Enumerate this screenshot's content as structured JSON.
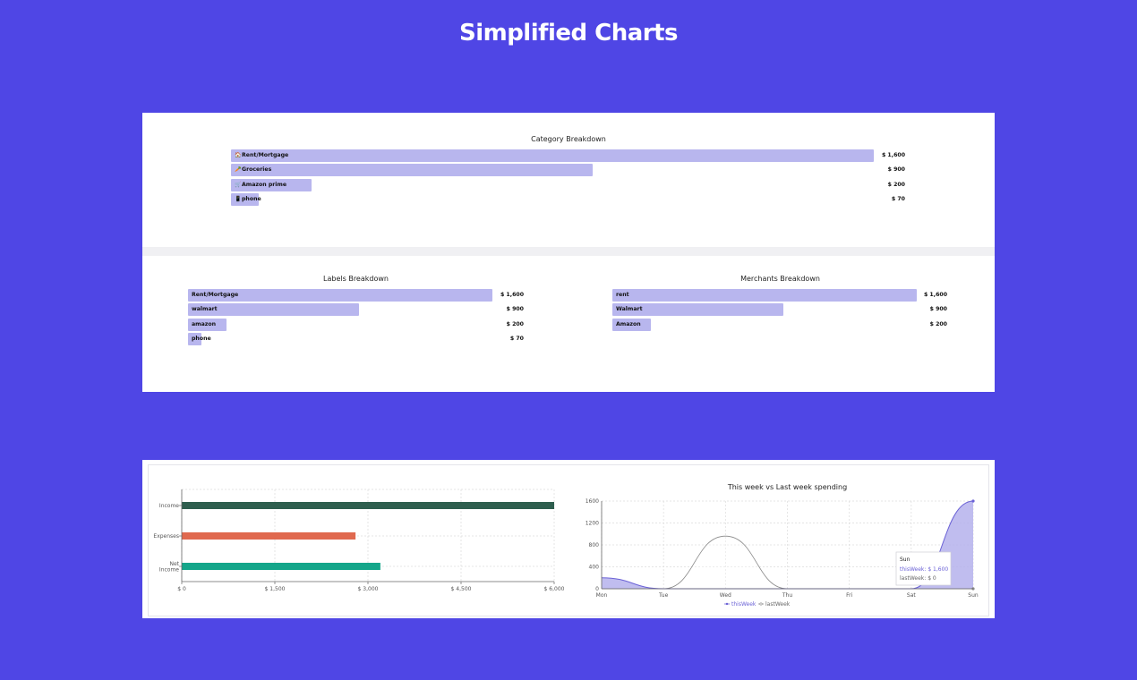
{
  "page": {
    "title": "Simplified Charts"
  },
  "category": {
    "title": "Category Breakdown",
    "items": [
      {
        "icon": "🏠",
        "icon_name": "house-icon",
        "label": "Rent/Mortgage",
        "value": 1600,
        "display": "$ 1,600"
      },
      {
        "icon": "🥕",
        "icon_name": "carrot-icon",
        "label": "Groceries",
        "value": 900,
        "display": "$ 900"
      },
      {
        "icon": "🛒",
        "icon_name": "cart-icon",
        "label": "Amazon prime",
        "value": 200,
        "display": "$ 200"
      },
      {
        "icon": "📱",
        "icon_name": "phone-icon",
        "label": "phone",
        "value": 70,
        "display": "$ 70"
      }
    ]
  },
  "labels": {
    "title": "Labels Breakdown",
    "items": [
      {
        "label": "Rent/Mortgage",
        "value": 1600,
        "display": "$ 1,600"
      },
      {
        "label": "walmart",
        "value": 900,
        "display": "$ 900"
      },
      {
        "label": "amazon",
        "value": 200,
        "display": "$ 200"
      },
      {
        "label": "phone",
        "value": 70,
        "display": "$ 70"
      }
    ]
  },
  "merchants": {
    "title": "Merchants Breakdown",
    "items": [
      {
        "label": "rent",
        "value": 1600,
        "display": "$ 1,600"
      },
      {
        "label": "Walmart",
        "value": 900,
        "display": "$ 900"
      },
      {
        "label": "Amazon",
        "value": 200,
        "display": "$ 200"
      }
    ]
  },
  "colors": {
    "background": "#4f46e5",
    "bar": "#b8b6ee",
    "income": "#2e5e4e",
    "expenses": "#e0694f",
    "net_income": "#14a68a",
    "this_week": "#6b62d6",
    "this_week_fill": "#b5b2ec",
    "last_week": "#888888"
  },
  "chart_data": [
    {
      "type": "bar",
      "orientation": "horizontal",
      "categories": [
        "Income",
        "Expenses",
        "Net Income"
      ],
      "values": [
        6000,
        2800,
        3200
      ],
      "xlim": [
        0,
        6000
      ],
      "xticks": [
        "$ 0",
        "$ 1,500",
        "$ 3,000",
        "$ 4,500",
        "$ 6,000"
      ],
      "xtick_values": [
        0,
        1500,
        3000,
        4500,
        6000
      ],
      "grid": true
    },
    {
      "type": "area",
      "title": "This week vs Last week spending",
      "categories": [
        "Mon",
        "Tue",
        "Wed",
        "Thu",
        "Fri",
        "Sat",
        "Sun"
      ],
      "series": [
        {
          "name": "thisWeek",
          "values": [
            200,
            0,
            0,
            0,
            0,
            0,
            1600
          ]
        },
        {
          "name": "lastWeek",
          "values": [
            0,
            0,
            960,
            0,
            0,
            0,
            0
          ]
        }
      ],
      "ylim": [
        0,
        1600
      ],
      "yticks": [
        0,
        400,
        800,
        1200,
        1600
      ],
      "grid": true,
      "legend": "bottom",
      "tooltip": {
        "title": "Sun",
        "lines": [
          "thisWeek: $ 1,600",
          "lastWeek: $ 0"
        ]
      }
    }
  ]
}
